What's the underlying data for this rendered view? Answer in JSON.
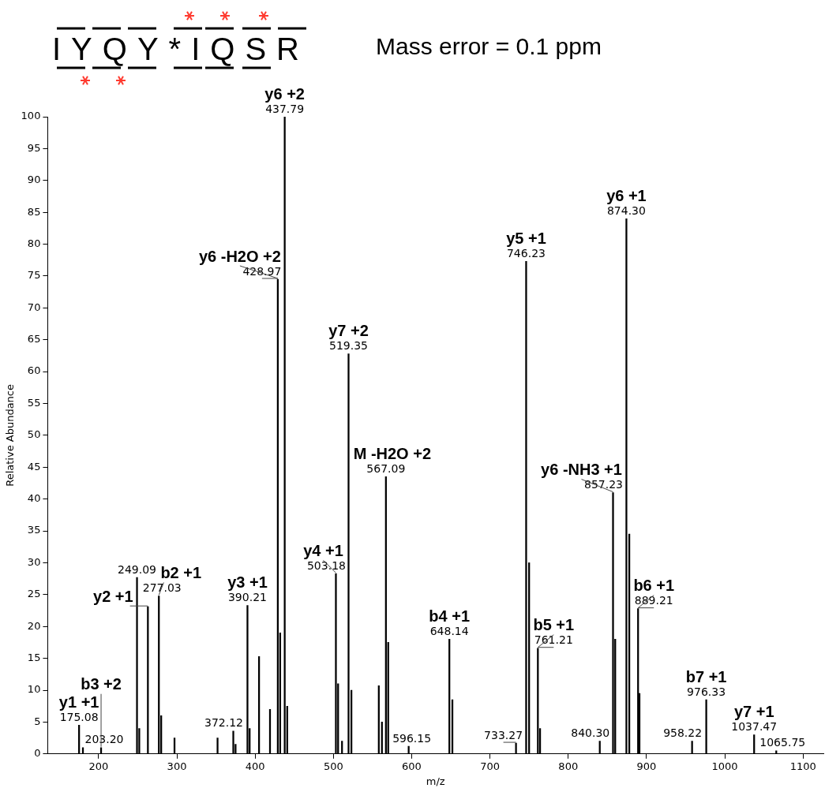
{
  "chart_data": {
    "type": "bar",
    "title": "IYQY*IQSR",
    "subtitle": "Mass error = 0.1 ppm",
    "xlabel": "m/z",
    "ylabel": "Relative Abundance",
    "color": "#000000",
    "x": [
      175.08,
      180,
      203.2,
      249.09,
      252,
      263,
      277.03,
      280,
      297,
      352,
      372.12,
      375,
      390.21,
      393,
      405,
      419,
      428.97,
      432,
      437.79,
      441,
      503.18,
      506,
      511,
      519.35,
      523,
      558,
      562,
      567.09,
      570,
      596.15,
      648.14,
      652,
      733.27,
      746.23,
      750,
      761.21,
      764,
      840.3,
      857.23,
      860,
      874.3,
      878,
      889.21,
      891,
      958.22,
      976.33,
      1037.47,
      1065.75
    ],
    "values": [
      4.5,
      1,
      1,
      27.7,
      4,
      23.1,
      24.8,
      6,
      2.5,
      2.5,
      3.6,
      1.5,
      23.3,
      4,
      15.3,
      7,
      74.5,
      19,
      100,
      7.5,
      28.3,
      11,
      2,
      62.8,
      10,
      10.7,
      5,
      43.5,
      17.5,
      1.2,
      18,
      8.5,
      1.7,
      77.3,
      30,
      16.6,
      4,
      2,
      41,
      18,
      84,
      34.5,
      22.8,
      9.5,
      2,
      8.5,
      3,
      0.5
    ],
    "xlim": [
      135,
      1126
    ],
    "ylim": [
      0,
      100
    ],
    "xticks": [
      200,
      300,
      400,
      500,
      600,
      700,
      800,
      900,
      1000,
      1100
    ],
    "yticks": [
      0,
      5,
      10,
      15,
      20,
      25,
      30,
      35,
      40,
      45,
      50,
      55,
      60,
      65,
      70,
      75,
      80,
      85,
      90,
      95,
      100
    ],
    "grid": false,
    "legend": false,
    "annotations": [
      {
        "text": "175.08",
        "x": 175.08,
        "y": 4.5
      },
      {
        "text": "203.20",
        "x": 203.2,
        "y": 1
      },
      {
        "text": "249.09",
        "x": 249.09,
        "y": 27.7
      },
      {
        "text": "277.03",
        "x": 277.03,
        "y": 24.8
      },
      {
        "text": "372.12",
        "x": 372.12,
        "y": 3.6
      },
      {
        "text": "390.21",
        "x": 390.21,
        "y": 23.3
      },
      {
        "text": "428.97",
        "x": 428.97,
        "y": 74.5
      },
      {
        "text": "437.79",
        "x": 437.79,
        "y": 100
      },
      {
        "text": "503.18",
        "x": 503.18,
        "y": 28.3
      },
      {
        "text": "519.35",
        "x": 519.35,
        "y": 62.8
      },
      {
        "text": "567.09",
        "x": 567.09,
        "y": 43.5
      },
      {
        "text": "596.15",
        "x": 596.15,
        "y": 1.2
      },
      {
        "text": "648.14",
        "x": 648.14,
        "y": 18
      },
      {
        "text": "733.27",
        "x": 733.27,
        "y": 1.7
      },
      {
        "text": "746.23",
        "x": 746.23,
        "y": 77.3
      },
      {
        "text": "761.21",
        "x": 761.21,
        "y": 16.6
      },
      {
        "text": "840.30",
        "x": 840.3,
        "y": 2
      },
      {
        "text": "857.23",
        "x": 857.23,
        "y": 41
      },
      {
        "text": "874.30",
        "x": 874.3,
        "y": 84
      },
      {
        "text": "889.21",
        "x": 889.21,
        "y": 22.8
      },
      {
        "text": "958.22",
        "x": 958.22,
        "y": 2
      },
      {
        "text": "976.33",
        "x": 976.33,
        "y": 8.5
      },
      {
        "text": "1037.47",
        "x": 1037.47,
        "y": 3
      },
      {
        "text": "1065.75",
        "x": 1065.75,
        "y": 0.5
      },
      {
        "text": "y1 +1",
        "x": 175.08,
        "y": 4.5
      },
      {
        "text": "b3 +2",
        "x": 203.2,
        "y": 1
      },
      {
        "text": "y2 +1",
        "x": 263,
        "y": 23.1
      },
      {
        "text": "b2 +1",
        "x": 277.03,
        "y": 24.8
      },
      {
        "text": "y3 +1",
        "x": 390.21,
        "y": 23.3
      },
      {
        "text": "y4 +1",
        "x": 503.18,
        "y": 28.3
      },
      {
        "text": "y6 -H2O +2",
        "x": 428.97,
        "y": 74.5
      },
      {
        "text": "y6 +2",
        "x": 437.79,
        "y": 100
      },
      {
        "text": "y7 +2",
        "x": 519.35,
        "y": 62.8
      },
      {
        "text": "M -H2O +2",
        "x": 567.09,
        "y": 43.5
      },
      {
        "text": "b4 +1",
        "x": 648.14,
        "y": 18
      },
      {
        "text": "y5 +1",
        "x": 746.23,
        "y": 77.3
      },
      {
        "text": "b5 +1",
        "x": 761.21,
        "y": 16.6
      },
      {
        "text": "y6 -NH3 +1",
        "x": 857.23,
        "y": 41
      },
      {
        "text": "y6 +1",
        "x": 874.3,
        "y": 84
      },
      {
        "text": "b6 +1",
        "x": 889.21,
        "y": 22.8
      },
      {
        "text": "b7 +1",
        "x": 976.33,
        "y": 8.5
      },
      {
        "text": "y7 +1",
        "x": 1037.47,
        "y": 3
      }
    ]
  }
}
